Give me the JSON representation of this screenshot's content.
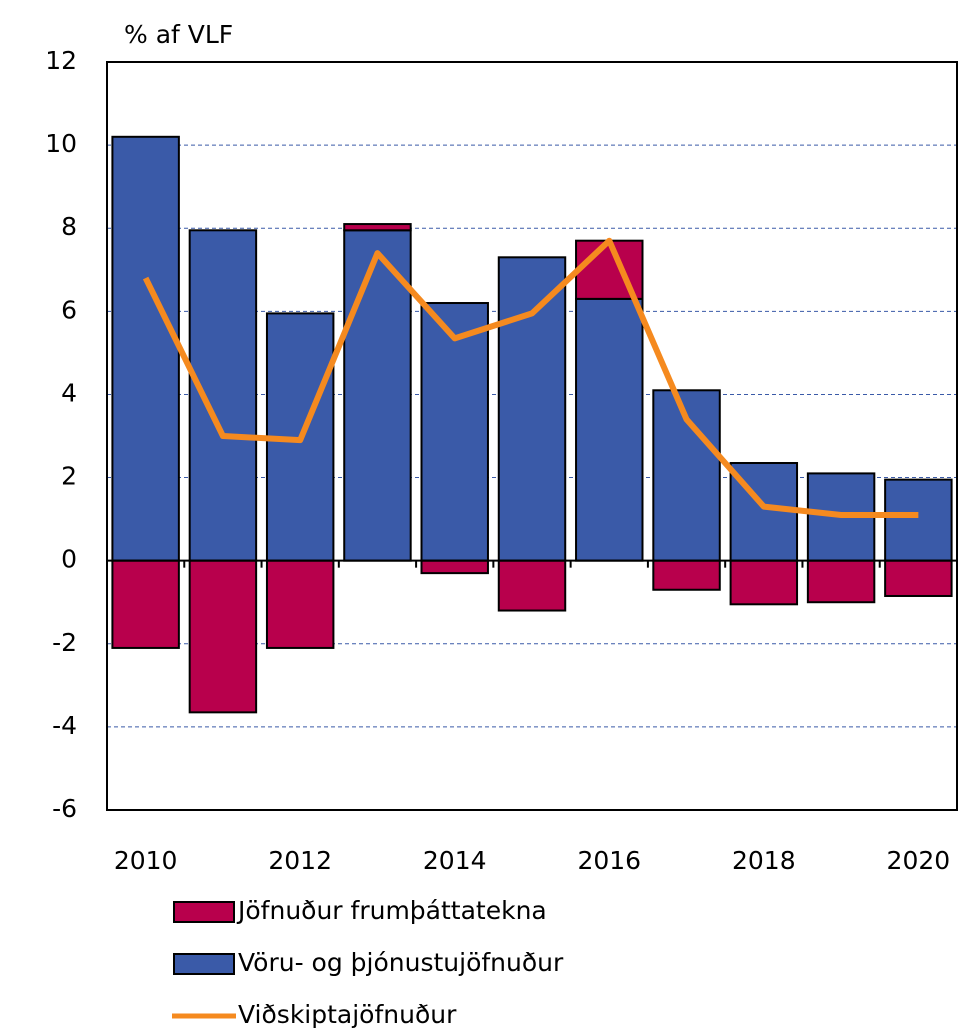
{
  "chart_data": {
    "type": "bar_line",
    "y_label": "% af VLF",
    "categories": [
      "2010",
      null,
      "2012",
      null,
      "2014",
      null,
      "2016",
      null,
      "2018",
      null,
      "2020"
    ],
    "series": [
      {
        "name": "Jöfnuður frumþáttatekna",
        "color": "#b8004c",
        "kind": "bar",
        "values": [
          -2.1,
          -3.65,
          -2.1,
          0.15,
          -0.3,
          -1.2,
          1.4,
          -0.7,
          -1.05,
          -1.0,
          -0.85
        ]
      },
      {
        "name": "Vöru- og þjónustujöfnuður",
        "color": "#3a5aa8",
        "kind": "bar",
        "values": [
          10.2,
          7.95,
          5.95,
          7.95,
          6.2,
          7.3,
          6.3,
          4.1,
          2.35,
          2.1,
          1.95
        ]
      },
      {
        "name": "Viðskiptajöfnuður",
        "color": "#f58a1f",
        "kind": "line",
        "values": [
          6.8,
          3.0,
          2.9,
          7.4,
          5.35,
          5.95,
          7.7,
          3.4,
          1.3,
          1.1,
          1.1
        ]
      }
    ],
    "ylim": [
      -6,
      12
    ],
    "yticks": [
      -6,
      -4,
      -2,
      0,
      2,
      4,
      6,
      8,
      10,
      12
    ],
    "grid": true
  }
}
